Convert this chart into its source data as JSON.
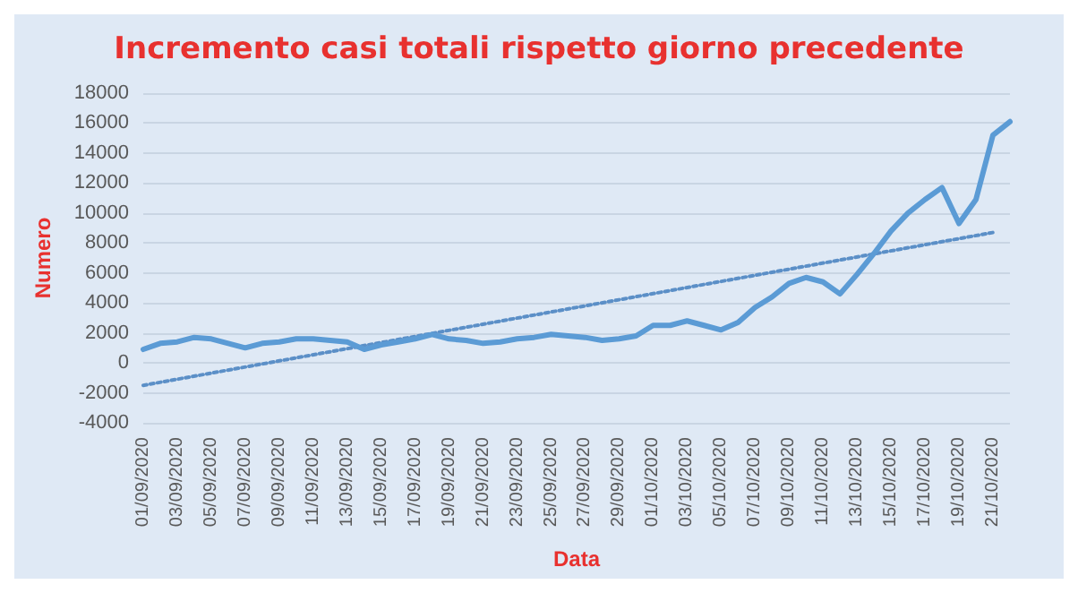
{
  "chart_data": {
    "type": "line",
    "title": "Incremento casi totali rispetto giorno precedente",
    "xlabel": "Data",
    "ylabel": "Numero",
    "categories": [
      "01/09/2020",
      null,
      "03/09/2020",
      null,
      "05/09/2020",
      null,
      "07/09/2020",
      null,
      "09/09/2020",
      null,
      "11/09/2020",
      null,
      "13/09/2020",
      null,
      "15/09/2020",
      null,
      "17/09/2020",
      null,
      "19/09/2020",
      null,
      "21/09/2020",
      null,
      "23/09/2020",
      null,
      "25/09/2020",
      null,
      "27/09/2020",
      null,
      "29/09/2020",
      null,
      "01/10/2020",
      null,
      "03/10/2020",
      null,
      "05/10/2020",
      null,
      "07/10/2020",
      null,
      "09/10/2020",
      null,
      "11/10/2020",
      null,
      "13/10/2020",
      null,
      "15/10/2020",
      null,
      "17/10/2020",
      null,
      "19/10/2020",
      null,
      "21/10/2020",
      null
    ],
    "series": [
      {
        "color": "#5b9bd5",
        "line_style": "solid",
        "values": [
          900,
          1300,
          1400,
          1700,
          1600,
          1300,
          1000,
          1300,
          1400,
          1600,
          1600,
          1500,
          1400,
          900,
          1200,
          1400,
          1600,
          1900,
          1600,
          1500,
          1300,
          1400,
          1600,
          1700,
          1900,
          1800,
          1700,
          1500,
          1600,
          1800,
          2500,
          2500,
          2800,
          2500,
          2200,
          2700,
          3700,
          4400,
          5300,
          5700,
          5400,
          4600,
          5900,
          7300,
          8800,
          10000,
          10900,
          11700,
          9300,
          10900,
          15200,
          16100
        ]
      },
      {
        "color": "#5b8fc7",
        "line_style": "dotted",
        "x": [
          "01/09/2020",
          "21/10/2020"
        ],
        "values": [
          -1500,
          8700
        ]
      }
    ],
    "ylim": [
      -4000,
      18000
    ],
    "yticks": [
      -4000,
      -2000,
      0,
      2000,
      4000,
      6000,
      8000,
      10000,
      12000,
      14000,
      16000,
      18000
    ],
    "grid": "y",
    "marker": "none"
  }
}
